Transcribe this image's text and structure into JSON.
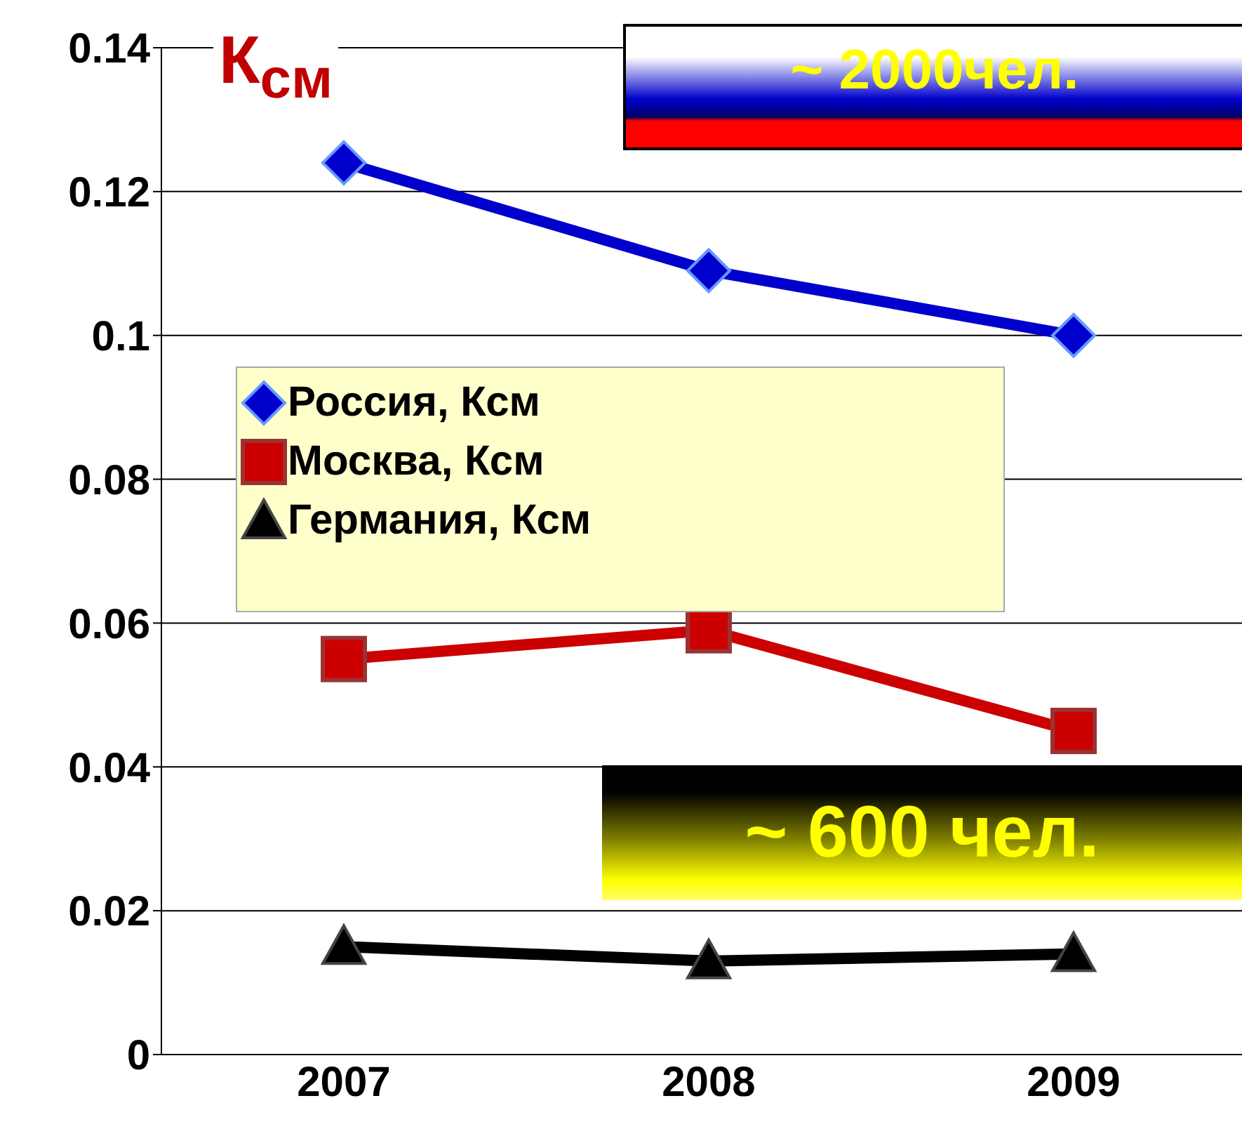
{
  "chart_data": {
    "type": "line",
    "categories": [
      "2007",
      "2008",
      "2009"
    ],
    "series": [
      {
        "name": "Россия, Ксм",
        "color": "#0000cc",
        "values": [
          0.124,
          0.109,
          0.1
        ],
        "marker": "diamond"
      },
      {
        "name": "Москва, Ксм",
        "color": "#cc0000",
        "values": [
          0.055,
          0.059,
          0.045
        ],
        "marker": "square"
      },
      {
        "name": "Германия, Ксм",
        "color": "#000000",
        "values": [
          0.015,
          0.013,
          0.014
        ],
        "marker": "triangle"
      }
    ],
    "ylim": [
      0,
      0.14
    ],
    "yticks": [
      0,
      0.02,
      0.04,
      0.06,
      0.08,
      0.1,
      0.12,
      0.14
    ],
    "grid": "y",
    "legend": "left",
    "annotations": [
      "К$_{см}$",
      "~ 2000чел.",
      "~ 600 чел."
    ]
  }
}
